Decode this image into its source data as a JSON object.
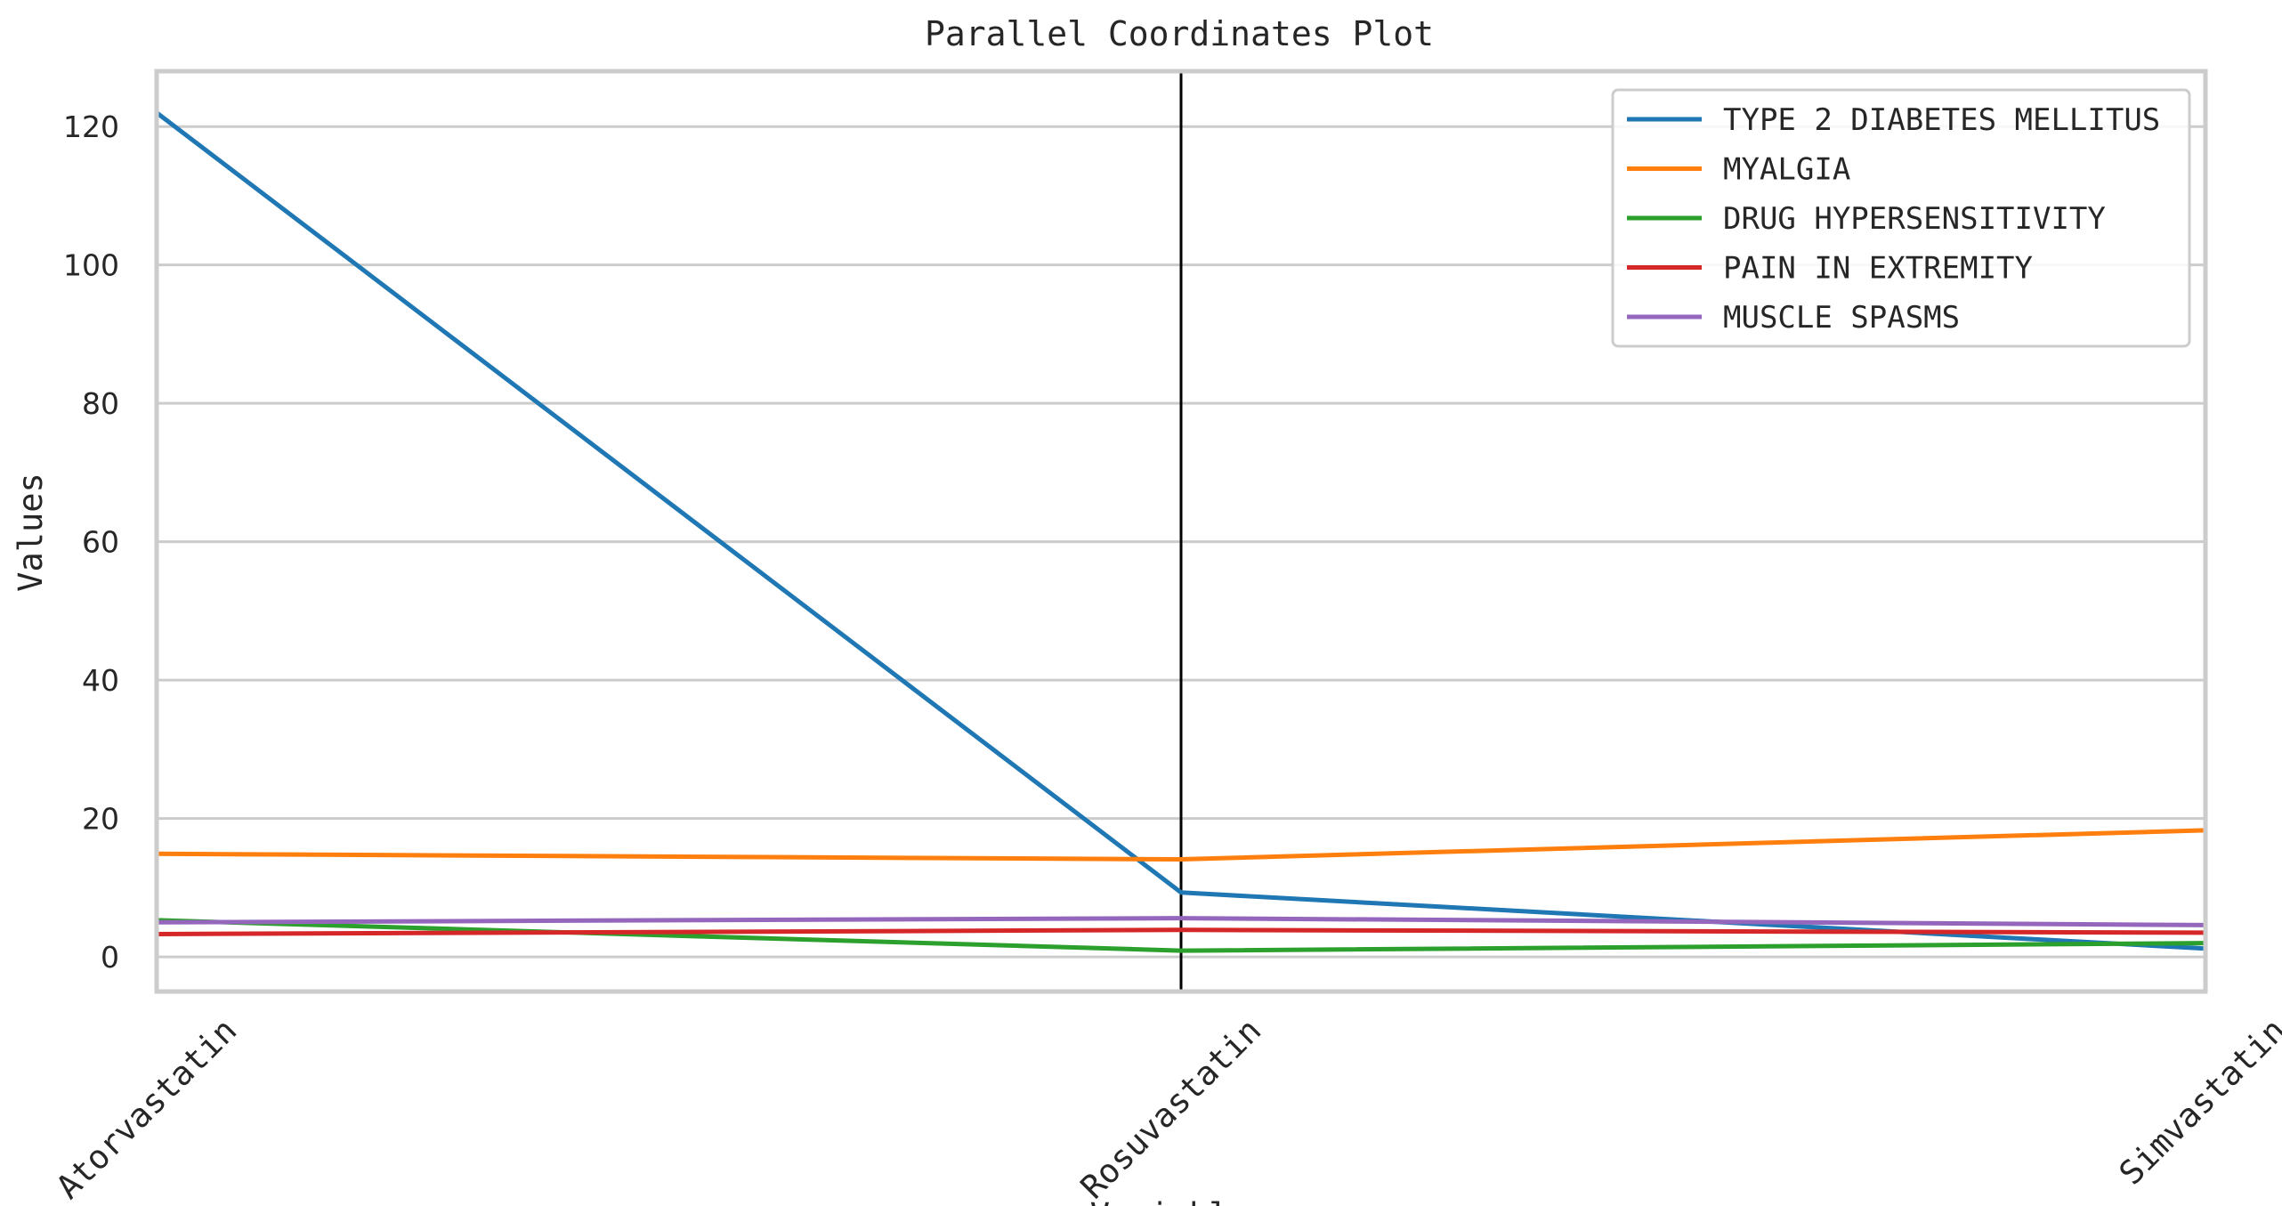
{
  "chart_data": {
    "type": "line",
    "subtype": "parallel-coordinates",
    "title": "Parallel Coordinates Plot",
    "xlabel": "Variables",
    "ylabel": "Values",
    "categories": [
      "Atorvastatin",
      "Rosuvastatin",
      "Simvastatin"
    ],
    "ylim": [
      -5,
      128
    ],
    "yticks": [
      0,
      20,
      40,
      60,
      80,
      100,
      120
    ],
    "highlighted_axis": "Rosuvastatin",
    "grid": true,
    "legend_position": "top-right",
    "series": [
      {
        "name": "TYPE 2 DIABETES MELLITUS",
        "values": [
          122,
          9.3,
          1.2
        ],
        "color": "#1f77b4"
      },
      {
        "name": "MYALGIA",
        "values": [
          14.9,
          14.1,
          18.3
        ],
        "color": "#ff7f0e"
      },
      {
        "name": "DRUG HYPERSENSITIVITY",
        "values": [
          5.3,
          0.9,
          2.0
        ],
        "color": "#2ca02c"
      },
      {
        "name": "PAIN IN EXTREMITY",
        "values": [
          3.3,
          3.9,
          3.5
        ],
        "color": "#d62728"
      },
      {
        "name": "MUSCLE SPASMS",
        "values": [
          5.0,
          5.6,
          4.6
        ],
        "color": "#9467bd"
      }
    ]
  }
}
